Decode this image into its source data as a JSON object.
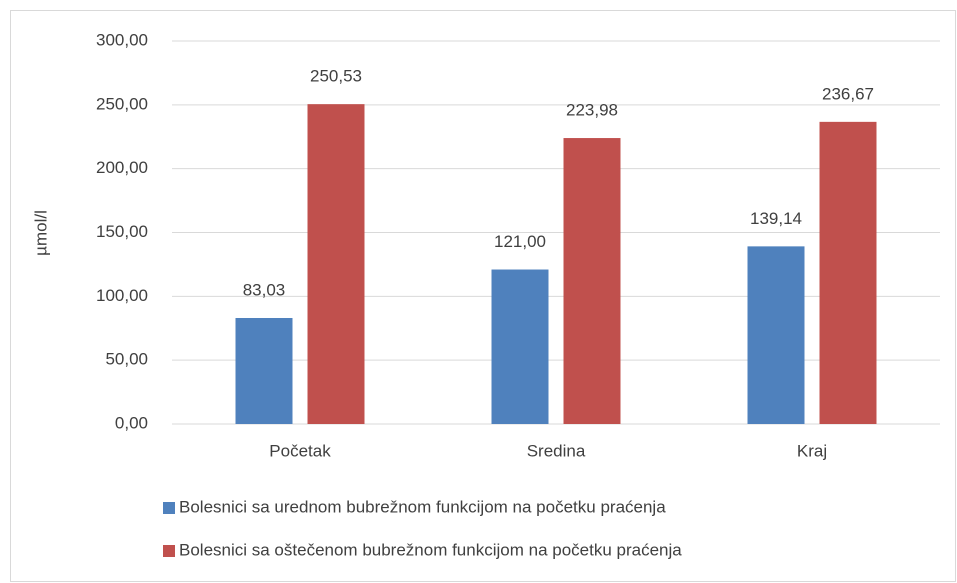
{
  "chart_data": {
    "type": "bar",
    "y_label": "µmol/l",
    "categories": [
      "Početak",
      "Sredina",
      "Kraj"
    ],
    "series": [
      {
        "name": "Bolesnici sa urednom bubrežnom funkcijom na početku praćenja",
        "color": "#4f81bd",
        "values": [
          83.03,
          121.0,
          139.14
        ],
        "value_labels": [
          "83,03",
          "121,00",
          "139,14"
        ]
      },
      {
        "name": "Bolesnici sa oštečenom bubrežnom funkcijom na početku praćenja",
        "color": "#c0504d",
        "values": [
          250.53,
          223.98,
          236.67
        ],
        "value_labels": [
          "250,53",
          "223,98",
          "236,67"
        ]
      }
    ],
    "ylim": [
      0,
      300
    ],
    "yticks": [
      {
        "value": 0,
        "label": "0,00"
      },
      {
        "value": 50,
        "label": "50,00"
      },
      {
        "value": 100,
        "label": "100,00"
      },
      {
        "value": 150,
        "label": "150,00"
      },
      {
        "value": 200,
        "label": "200,00"
      },
      {
        "value": 250,
        "label": "250,00"
      },
      {
        "value": 300,
        "label": "300,00"
      }
    ],
    "grid": true
  }
}
